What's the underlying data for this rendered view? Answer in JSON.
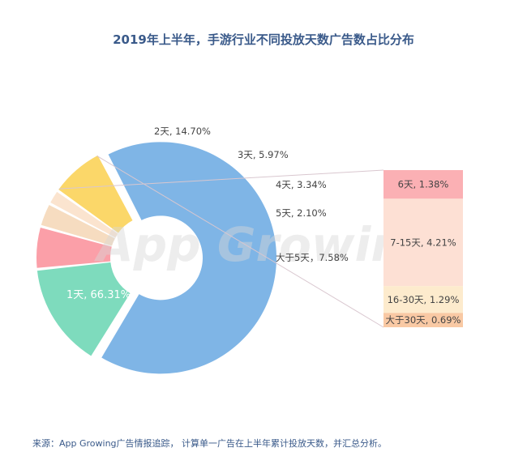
{
  "chart_data": {
    "type": "pie",
    "title": "2019年上半年，手游行业不同投放天数广告数占比分布",
    "slices": [
      {
        "label": "1天, 66.31%",
        "value": 66.31,
        "color": "#7fb5e6"
      },
      {
        "label": "2天, 14.70%",
        "value": 14.7,
        "color": "#7edbbd"
      },
      {
        "label": "3天, 5.97%",
        "value": 5.97,
        "color": "#fb9fa8"
      },
      {
        "label": "4天, 3.34%",
        "value": 3.34,
        "color": "#f6dcc0"
      },
      {
        "label": "5天, 2.10%",
        "value": 2.1,
        "color": "#fbe4cf"
      },
      {
        "label": "大于5天，7.58%",
        "value": 7.58,
        "color": "#fbd769"
      }
    ],
    "breakdown": [
      {
        "label": "6天, 1.38%",
        "value": 1.38,
        "color": "#fbb0b4"
      },
      {
        "label": "7-15天, 4.21%",
        "value": 4.21,
        "color": "#fde0d4"
      },
      {
        "label": "16-30天, 1.29%",
        "value": 1.29,
        "color": "#fdebcd"
      },
      {
        "label": "大于30天, 0.69%",
        "value": 0.69,
        "color": "#f9c9a4"
      }
    ]
  },
  "watermark": "App Growing",
  "source": "来源：App Growing广告情报追踪，  计算单一广告在上半年累计投放天数，并汇总分析。"
}
